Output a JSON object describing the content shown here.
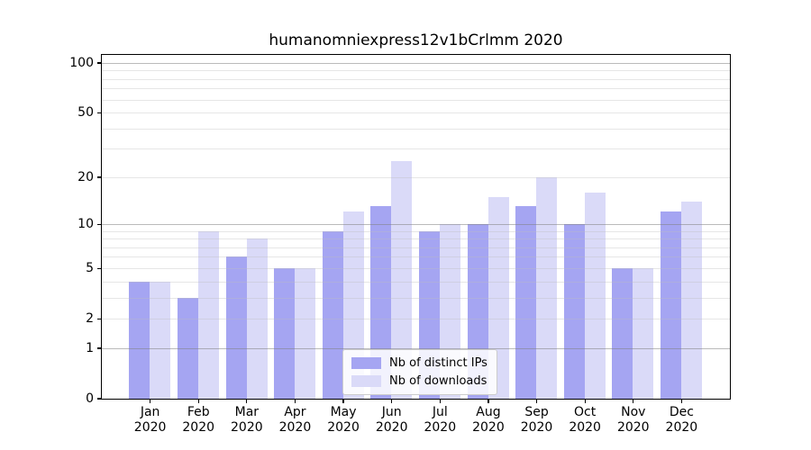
{
  "page": {
    "background": "#ffffff"
  },
  "chart_data": {
    "type": "bar",
    "title": "humanomniexpress12v1bCrlmm 2020",
    "categories": [
      "Jan 2020",
      "Feb 2020",
      "Mar 2020",
      "Apr 2020",
      "May 2020",
      "Jun 2020",
      "Jul 2020",
      "Aug 2020",
      "Sep 2020",
      "Oct 2020",
      "Nov 2020",
      "Dec 2020"
    ],
    "series": [
      {
        "name": "Nb of distinct IPs",
        "color": "#a5a5f2",
        "values": [
          4,
          3,
          6,
          5,
          9,
          13,
          9,
          10,
          13,
          10,
          5,
          12
        ]
      },
      {
        "name": "Nb of downloads",
        "color": "#dadaf8",
        "values": [
          4,
          9,
          8,
          5,
          12,
          25,
          10,
          15,
          20,
          16,
          5,
          14
        ]
      }
    ],
    "xlabel": "",
    "ylabel": "",
    "yscale": "log1p",
    "ylim": [
      0,
      112
    ],
    "yticks": [
      0,
      1,
      2,
      5,
      10,
      20,
      50,
      100
    ],
    "grid_major": [
      1,
      10,
      100
    ],
    "grid_minor": [
      2,
      3,
      4,
      5,
      6,
      7,
      8,
      9,
      20,
      30,
      40,
      50,
      60,
      70,
      80,
      90
    ],
    "grid": true,
    "legend": {
      "entries": [
        "Nb of distinct IPs",
        "Nb of downloads"
      ],
      "position": "lower center"
    }
  },
  "colors": {
    "bar_distinct_ips": "#a5a5f2",
    "bar_downloads": "#dadaf8",
    "spine": "#000000",
    "text": "#000000",
    "legend_border": "#cccccc"
  }
}
